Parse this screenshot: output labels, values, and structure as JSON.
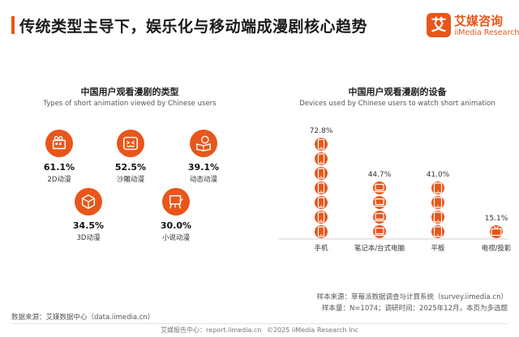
{
  "header": {
    "title": "传统类型主导下，娱乐化与移动端成漫剧核心趋势"
  },
  "logo": {
    "mark": "艾",
    "cn": "艾媒咨询",
    "en": "iiMedia Research"
  },
  "colors": {
    "accent": "#e8561b",
    "divider": "#d9d9d9"
  },
  "chart_data": [
    {
      "type": "table",
      "title": "中国用户观看漫剧的类型",
      "subtitle": "Types of short animation viewed by Chinese users",
      "items": [
        {
          "label": "2D动漫",
          "value": 61.1,
          "value_text": "61.1%",
          "icon": "film-icon"
        },
        {
          "label": "沙雕动漫",
          "value": 52.5,
          "value_text": "52.5%",
          "icon": "laughing-face-icon"
        },
        {
          "label": "动态动漫",
          "value": 39.1,
          "value_text": "39.1%",
          "icon": "speech-book-icon"
        },
        {
          "label": "3D动漫",
          "value": 34.5,
          "value_text": "34.5%",
          "icon": "cube-icon"
        },
        {
          "label": "小说动漫",
          "value": 30.0,
          "value_text": "30.0%",
          "icon": "easel-icon"
        }
      ]
    },
    {
      "type": "bar",
      "title": "中国用户观看漫剧的设备",
      "subtitle": "Devices used by Chinese users to watch short animation",
      "categories": [
        "手机",
        "笔记本/台式电脑",
        "平板",
        "电视/投影"
      ],
      "values": [
        72.8,
        44.7,
        41.0,
        15.1
      ],
      "value_labels": [
        "72.8%",
        "44.7%",
        "41.0%",
        "15.1%"
      ],
      "icons": [
        "phone-icon",
        "laptop-icon",
        "tablet-icon",
        "tv-icon"
      ],
      "ylim": [
        0,
        80
      ]
    }
  ],
  "sources": {
    "sample_source": "样本来源：草莓派数据调查与计算系统（survey.iimedia.cn）",
    "sample_size": "样本量：N=1074；调研时间：2025年12月，本页为多选题",
    "data_source": "数据来源：艾媒数据中心（data.iimedia.cn）"
  },
  "footer": {
    "left": "艾媒报告中心：report.iimedia.cn",
    "right": "©2025  iiMedia Research  Inc"
  }
}
